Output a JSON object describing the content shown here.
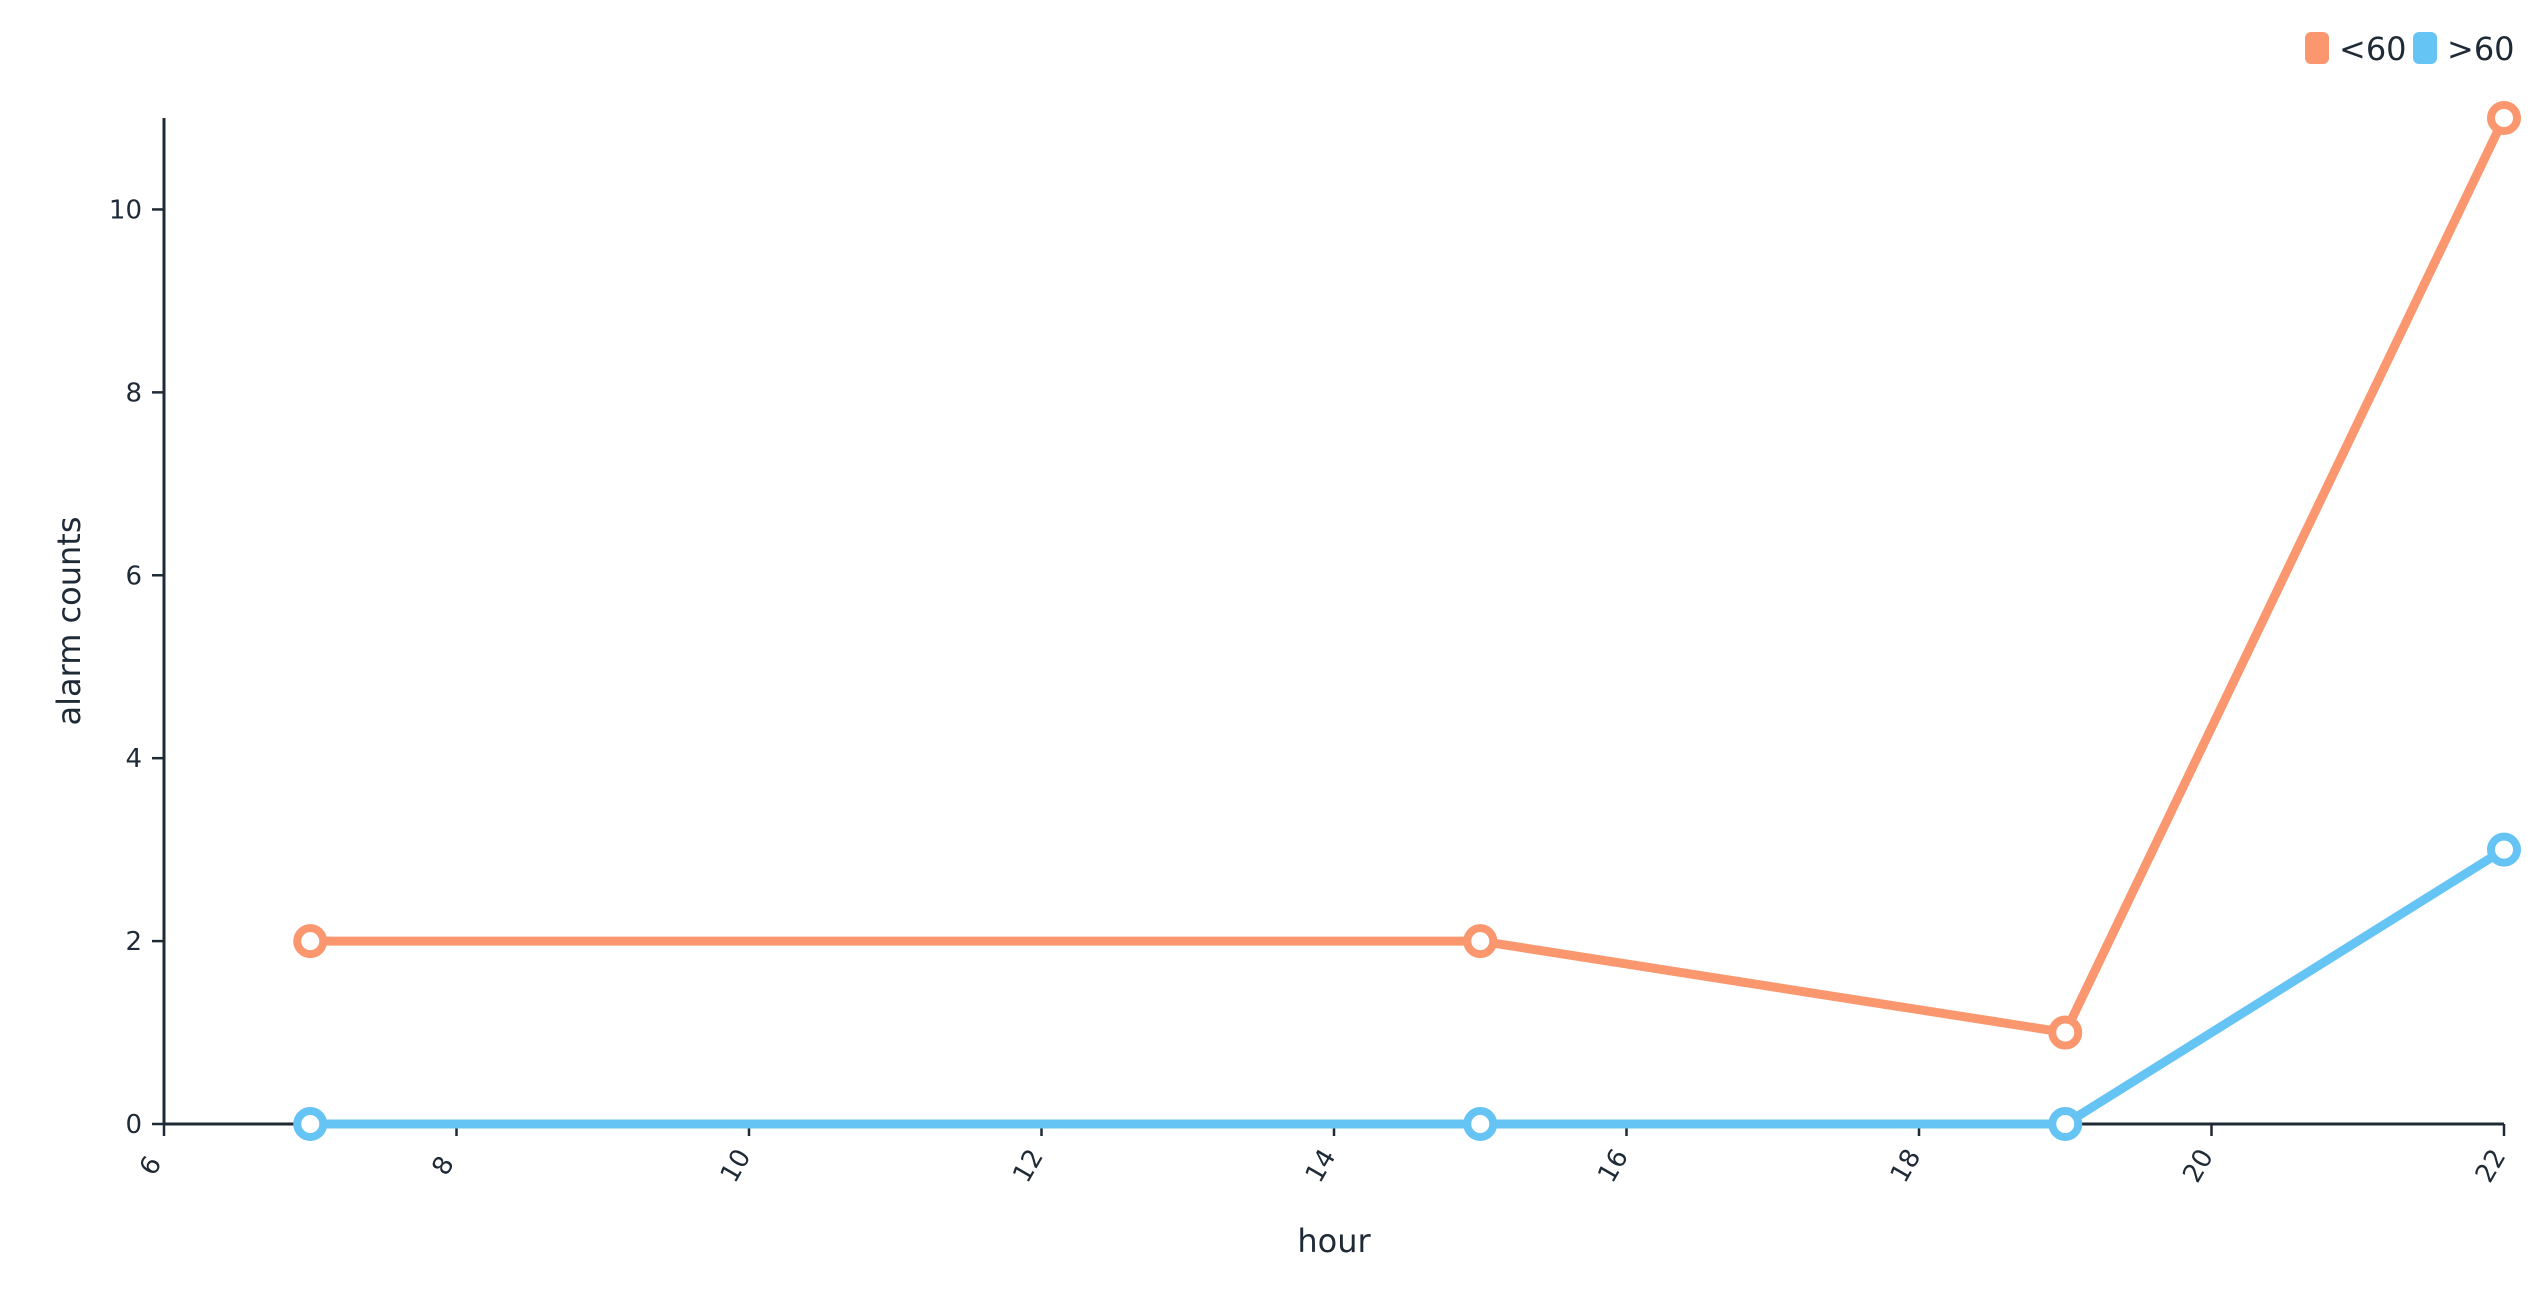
{
  "chart_data": {
    "type": "line",
    "title": "",
    "xlabel": "hour",
    "ylabel": "alarm counts",
    "xlim": [
      6,
      22
    ],
    "ylim": [
      0,
      11
    ],
    "x_ticks": [
      6,
      8,
      10,
      12,
      14,
      16,
      18,
      20,
      22
    ],
    "y_ticks": [
      0,
      2,
      4,
      6,
      8,
      10
    ],
    "x": [
      7,
      15,
      19,
      22
    ],
    "series": [
      {
        "name": "<60",
        "color": "#FA976F",
        "values": [
          2,
          2,
          1,
          11
        ]
      },
      {
        "name": ">60",
        "color": "#66C4F5",
        "values": [
          0,
          0,
          0,
          3
        ]
      }
    ],
    "grid": false,
    "legend": "top-right"
  }
}
